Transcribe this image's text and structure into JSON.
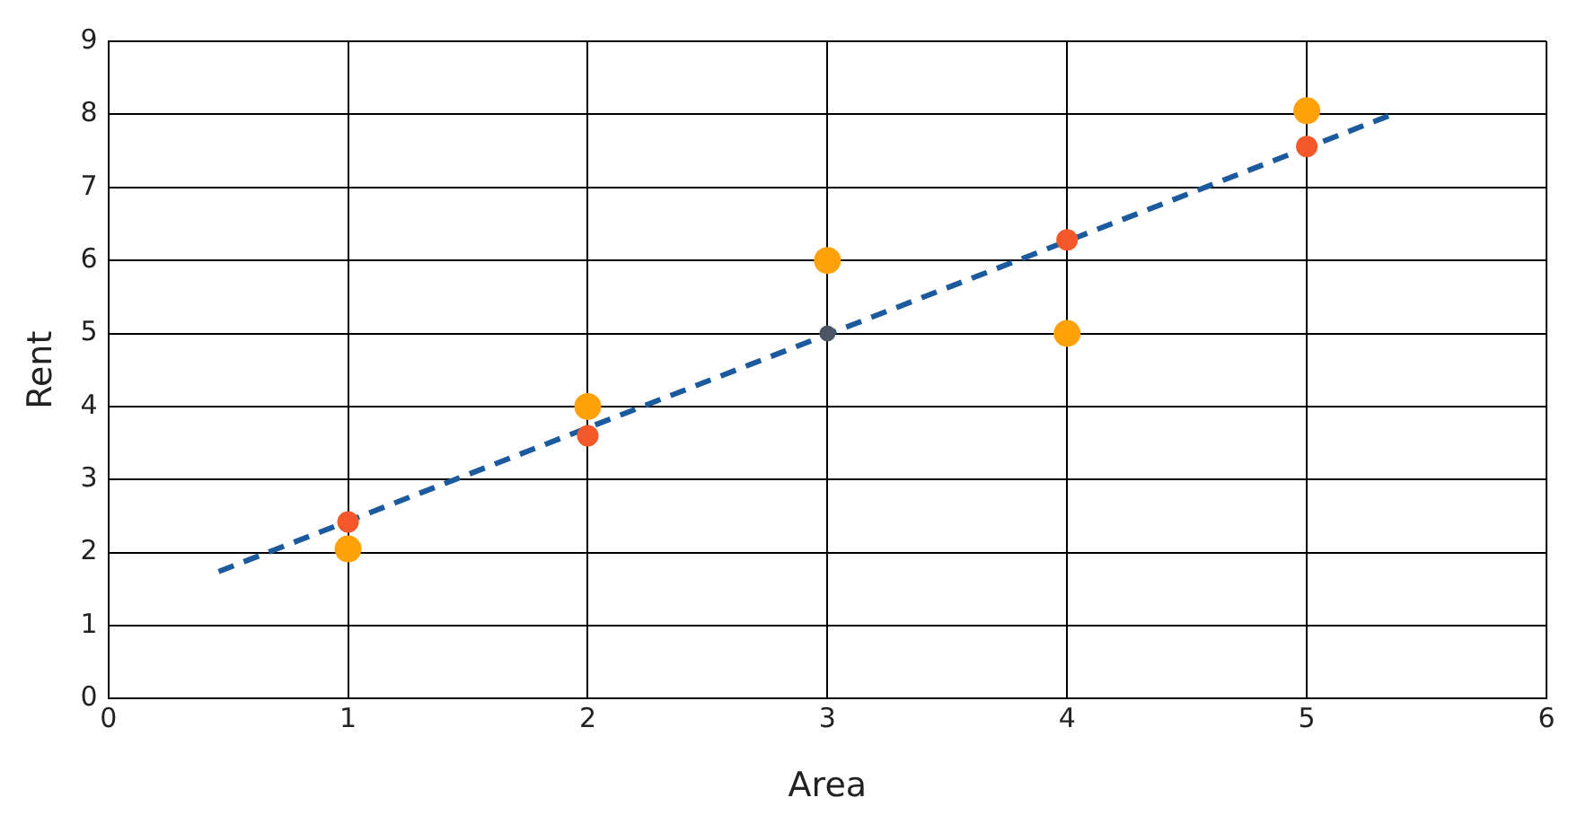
{
  "chart_data": {
    "type": "scatter",
    "xlabel": "Area",
    "ylabel": "Rent",
    "xlim": [
      0,
      6
    ],
    "xticks": [
      0,
      1,
      2,
      3,
      4,
      5,
      6
    ],
    "ylim": [
      0,
      9
    ],
    "yticks": [
      0,
      1,
      2,
      3,
      4,
      5,
      6,
      7,
      8,
      9
    ],
    "grid": true,
    "legend": false,
    "series": [
      {
        "type": "line",
        "color": "#1b5a9c",
        "line_style": "dashed",
        "marker": "none",
        "x": [
          0.46,
          5.35
        ],
        "values": [
          1.74,
          7.99
        ]
      },
      {
        "color": "#ffa20a",
        "marker": "circle",
        "x": [
          1,
          2,
          3,
          4,
          5
        ],
        "values": [
          2.05,
          4,
          6,
          5,
          8.05
        ]
      },
      {
        "color": "#f4582a",
        "marker": "circle",
        "x": [
          1,
          2,
          4,
          5
        ],
        "values": [
          2.42,
          3.6,
          6.28,
          7.56
        ]
      },
      {
        "color": "#4b5563",
        "marker": "circle",
        "x": [
          3
        ],
        "values": [
          5
        ]
      }
    ]
  }
}
